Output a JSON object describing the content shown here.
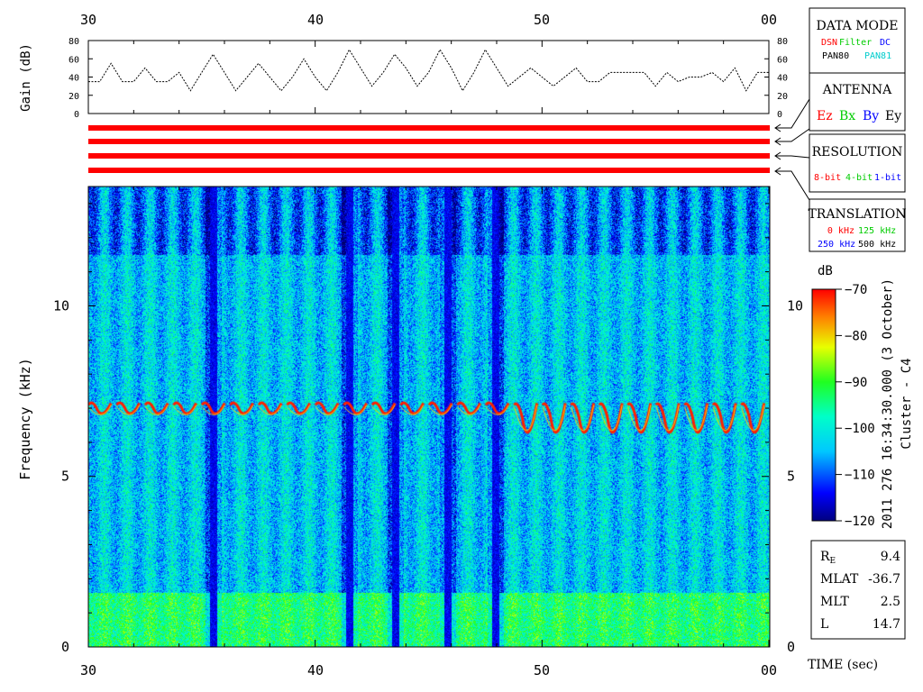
{
  "chart_data": {
    "type": "heatmap",
    "time_axis": {
      "ticks": [
        "30",
        "40",
        "50",
        "00"
      ],
      "tick_values": [
        30,
        40,
        50,
        60
      ],
      "range": [
        30,
        60
      ],
      "label": "TIME (sec)"
    },
    "gain_panel": {
      "ylabel": "Gain (dB)",
      "ylim": [
        0,
        80
      ],
      "ticks": [
        0,
        20,
        40,
        60,
        80
      ],
      "series": [
        {
          "t": 30.0,
          "g": 35
        },
        {
          "t": 30.5,
          "g": 35
        },
        {
          "t": 31.0,
          "g": 55
        },
        {
          "t": 31.5,
          "g": 35
        },
        {
          "t": 32.0,
          "g": 35
        },
        {
          "t": 32.5,
          "g": 50
        },
        {
          "t": 33.0,
          "g": 35
        },
        {
          "t": 33.5,
          "g": 35
        },
        {
          "t": 34.0,
          "g": 45
        },
        {
          "t": 34.5,
          "g": 25
        },
        {
          "t": 35.0,
          "g": 45
        },
        {
          "t": 35.5,
          "g": 65
        },
        {
          "t": 36.0,
          "g": 45
        },
        {
          "t": 36.5,
          "g": 25
        },
        {
          "t": 37.0,
          "g": 40
        },
        {
          "t": 37.5,
          "g": 55
        },
        {
          "t": 38.0,
          "g": 40
        },
        {
          "t": 38.5,
          "g": 25
        },
        {
          "t": 39.0,
          "g": 40
        },
        {
          "t": 39.5,
          "g": 60
        },
        {
          "t": 40.0,
          "g": 40
        },
        {
          "t": 40.5,
          "g": 25
        },
        {
          "t": 41.0,
          "g": 45
        },
        {
          "t": 41.5,
          "g": 70
        },
        {
          "t": 42.0,
          "g": 50
        },
        {
          "t": 42.5,
          "g": 30
        },
        {
          "t": 43.0,
          "g": 45
        },
        {
          "t": 43.5,
          "g": 65
        },
        {
          "t": 44.0,
          "g": 50
        },
        {
          "t": 44.5,
          "g": 30
        },
        {
          "t": 45.0,
          "g": 45
        },
        {
          "t": 45.5,
          "g": 70
        },
        {
          "t": 46.0,
          "g": 50
        },
        {
          "t": 46.5,
          "g": 25
        },
        {
          "t": 47.0,
          "g": 45
        },
        {
          "t": 47.5,
          "g": 70
        },
        {
          "t": 48.0,
          "g": 50
        },
        {
          "t": 48.5,
          "g": 30
        },
        {
          "t": 49.0,
          "g": 40
        },
        {
          "t": 49.5,
          "g": 50
        },
        {
          "t": 50.0,
          "g": 40
        },
        {
          "t": 50.5,
          "g": 30
        },
        {
          "t": 51.0,
          "g": 40
        },
        {
          "t": 51.5,
          "g": 50
        },
        {
          "t": 52.0,
          "g": 35
        },
        {
          "t": 52.5,
          "g": 35
        },
        {
          "t": 53.0,
          "g": 45
        },
        {
          "t": 53.5,
          "g": 45
        },
        {
          "t": 54.0,
          "g": 45
        },
        {
          "t": 54.5,
          "g": 45
        },
        {
          "t": 55.0,
          "g": 30
        },
        {
          "t": 55.5,
          "g": 45
        },
        {
          "t": 56.0,
          "g": 35
        },
        {
          "t": 56.5,
          "g": 40
        },
        {
          "t": 57.0,
          "g": 40
        },
        {
          "t": 57.5,
          "g": 45
        },
        {
          "t": 58.0,
          "g": 35
        },
        {
          "t": 58.5,
          "g": 50
        },
        {
          "t": 59.0,
          "g": 25
        },
        {
          "t": 59.5,
          "g": 45
        },
        {
          "t": 60.0,
          "g": 45
        }
      ]
    },
    "spectrogram": {
      "ylabel": "Frequency (kHz)",
      "ylim": [
        0,
        13.5
      ],
      "ticks": [
        0,
        5,
        10
      ],
      "colorbar": {
        "label": "dB",
        "range": [
          -120,
          -70
        ],
        "ticks": [
          -70,
          -80,
          -90,
          -100,
          -110,
          -120
        ]
      },
      "emission_band_khz": [
        5.5,
        7.2
      ],
      "dropouts_sec": [
        35.5,
        41.5,
        43.5,
        45.8,
        47.9
      ]
    },
    "indicator_bars": 4
  },
  "side_title": "2011 276 16:34:30.000 (3 October)",
  "side_subtitle": "Cluster - C4",
  "legend_boxes": {
    "data_mode": {
      "title": "DATA MODE",
      "items": [
        {
          "label": "DSN",
          "color": "#ff0000"
        },
        {
          "label": "Filter",
          "color": "#00cc00"
        },
        {
          "label": "DC",
          "color": "#0000ff"
        },
        {
          "label": "PAN80",
          "color": "#000000"
        },
        {
          "label": "PAN81",
          "color": "#00cccc"
        }
      ]
    },
    "antenna": {
      "title": "ANTENNA",
      "items": [
        {
          "label": "Ez",
          "color": "#ff0000"
        },
        {
          "label": "Bx",
          "color": "#00cc00"
        },
        {
          "label": "By",
          "color": "#0000ff"
        },
        {
          "label": "Ey",
          "color": "#000000"
        }
      ]
    },
    "resolution": {
      "title": "RESOLUTION",
      "items": [
        {
          "label": "8-bit",
          "color": "#ff0000"
        },
        {
          "label": "4-bit",
          "color": "#00cc00"
        },
        {
          "label": "1-bit",
          "color": "#0000ff"
        }
      ]
    },
    "translation": {
      "title": "TRANSLATION",
      "items": [
        {
          "label": "0 kHz",
          "color": "#ff0000"
        },
        {
          "label": "125 kHz",
          "color": "#00cc00"
        },
        {
          "label": "250 kHz",
          "color": "#0000ff"
        },
        {
          "label": "500 kHz",
          "color": "#000000"
        }
      ]
    }
  },
  "ephemeris": [
    {
      "name": "R",
      "sub": "E",
      "value": "9.4"
    },
    {
      "name": "MLAT",
      "sub": "",
      "value": "-36.7"
    },
    {
      "name": "MLT",
      "sub": "",
      "value": "2.5"
    },
    {
      "name": "L",
      "sub": "",
      "value": "14.7"
    }
  ],
  "colors": {
    "bar_red": "#ff0000"
  }
}
